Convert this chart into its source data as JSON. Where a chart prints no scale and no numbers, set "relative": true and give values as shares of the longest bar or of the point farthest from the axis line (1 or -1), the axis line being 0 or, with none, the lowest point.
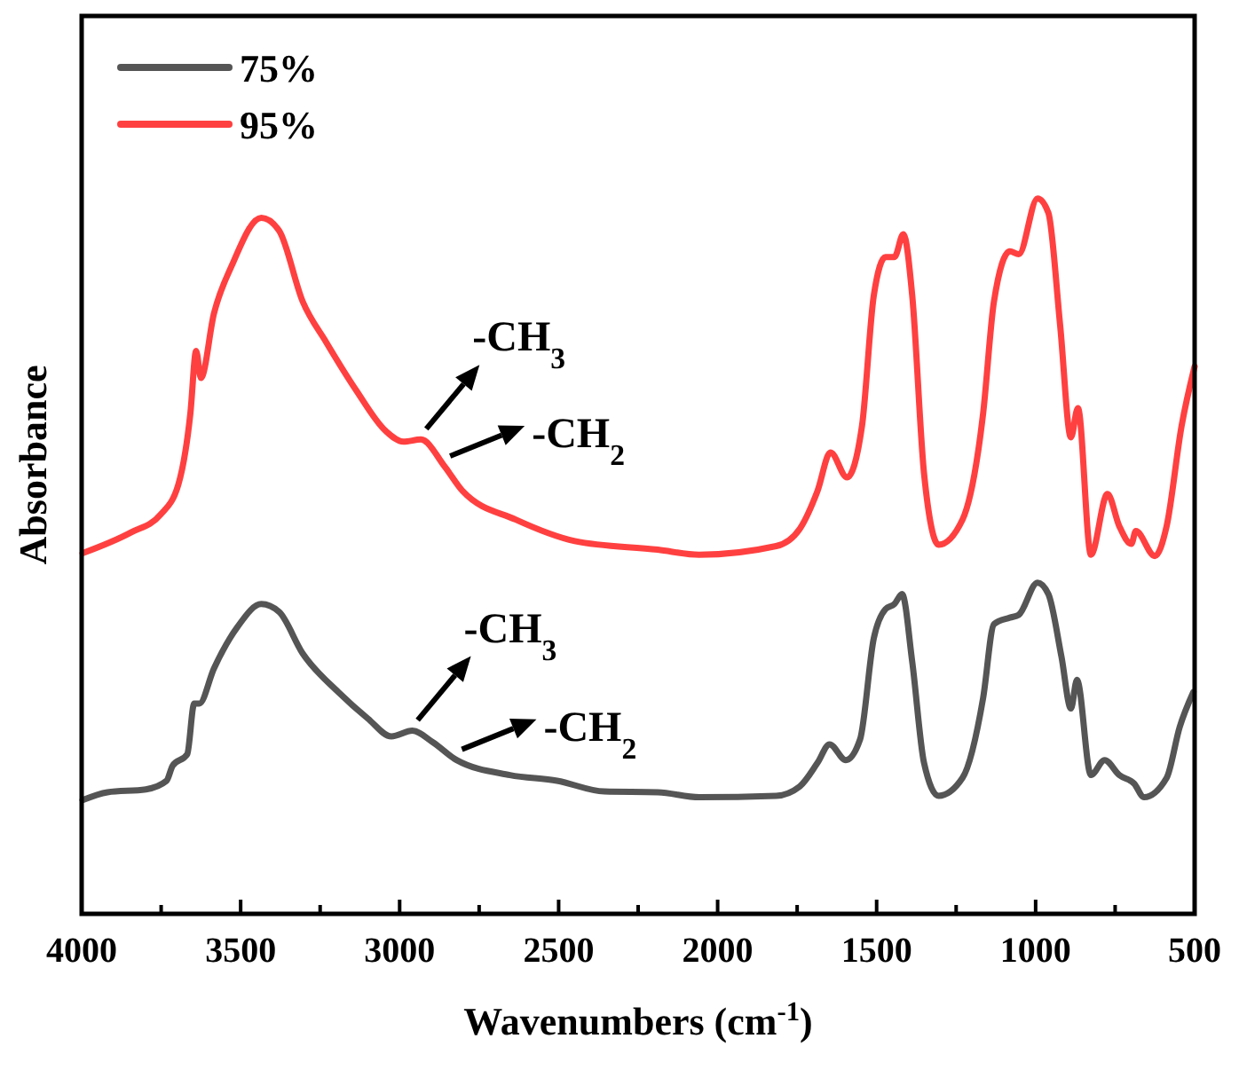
{
  "chart_data": {
    "type": "line",
    "relative": true,
    "xlabel": "Wavenumbers (cm$^{-1}$)",
    "ylabel": "Absorbance",
    "xlim": [
      4000,
      500
    ],
    "xticks": [
      4000,
      {
        "value": 3750,
        "label": null
      },
      3500,
      {
        "value": 3250,
        "label": null
      },
      3000,
      {
        "value": 2750,
        "label": null
      },
      2500,
      {
        "value": 2250,
        "label": null
      },
      2000,
      {
        "value": 1750,
        "label": null
      },
      1500,
      {
        "value": 1250,
        "label": null
      },
      1000,
      {
        "value": 750,
        "label": null
      },
      500
    ],
    "tick_labels": "x",
    "legend": "top left",
    "grid": false,
    "marker": "none",
    "line_style": "solid",
    "series": [
      {
        "name": "75%",
        "color": "#555555",
        "x": [
          3997,
          3919,
          3798,
          3733,
          3714,
          3668,
          3646,
          3630,
          3584,
          3510,
          3435,
          3379,
          3305,
          3193,
          3100,
          3026,
          2960,
          2896,
          2821,
          2653,
          2505,
          2356,
          2188,
          2058,
          1816,
          1742,
          1686,
          1648,
          1597,
          1552,
          1509,
          1472,
          1444,
          1420,
          1388,
          1351,
          1305,
          1230,
          1165,
          1131,
          1081,
          1053,
          994,
          960,
          919,
          889,
          870,
          826,
          783,
          737,
          690,
          659,
          588,
          547,
          504
        ],
        "values": [
          0.159,
          0.17,
          0.174,
          0.186,
          0.207,
          0.223,
          0.294,
          0.294,
          0.343,
          0.401,
          0.433,
          0.422,
          0.364,
          0.31,
          0.273,
          0.248,
          0.256,
          0.24,
          0.215,
          0.194,
          0.186,
          0.171,
          0.17,
          0.163,
          0.165,
          0.178,
          0.211,
          0.237,
          0.215,
          0.244,
          0.385,
          0.426,
          0.433,
          0.447,
          0.352,
          0.211,
          0.165,
          0.19,
          0.302,
          0.405,
          0.414,
          0.418,
          0.463,
          0.447,
          0.36,
          0.287,
          0.327,
          0.194,
          0.215,
          0.194,
          0.182,
          0.163,
          0.19,
          0.261,
          0.31
        ]
      },
      {
        "name": "95%",
        "color": "#ff4040",
        "x": [
          3997,
          3845,
          3752,
          3696,
          3658,
          3640,
          3625,
          3584,
          3528,
          3435,
          3379,
          3305,
          3231,
          3137,
          3044,
          2988,
          2933,
          2858,
          2802,
          2635,
          2449,
          2188,
          2058,
          1816,
          1742,
          1686,
          1645,
          1593,
          1546,
          1509,
          1472,
          1444,
          1416,
          1388,
          1351,
          1305,
          1230,
          1165,
          1131,
          1081,
          1053,
          994,
          960,
          923,
          889,
          867,
          826,
          774,
          737,
          699,
          685,
          625,
          588,
          541,
          500
        ],
        "values": [
          0.504,
          0.533,
          0.558,
          0.6,
          0.7,
          0.787,
          0.749,
          0.839,
          0.906,
          0.973,
          0.955,
          0.856,
          0.799,
          0.732,
          0.675,
          0.66,
          0.663,
          0.625,
          0.591,
          0.551,
          0.521,
          0.509,
          0.502,
          0.514,
          0.538,
          0.591,
          0.645,
          0.61,
          0.682,
          0.864,
          0.918,
          0.918,
          0.95,
          0.864,
          0.616,
          0.516,
          0.551,
          0.7,
          0.856,
          0.926,
          0.922,
          1.0,
          0.98,
          0.823,
          0.666,
          0.707,
          0.502,
          0.587,
          0.542,
          0.517,
          0.535,
          0.5,
          0.542,
          0.682,
          0.765
        ]
      }
    ],
    "annotations": [
      {
        "text": "-CH$_{3}$",
        "x": 2933,
        "y": 0.663
      },
      {
        "text": "-CH$_{2}$",
        "x": 2858,
        "y": 0.625
      },
      {
        "text": "-CH$_{3}$",
        "x": 2960,
        "y": 0.256
      },
      {
        "text": "-CH$_{2}$",
        "x": 2821,
        "y": 0.215
      }
    ]
  }
}
